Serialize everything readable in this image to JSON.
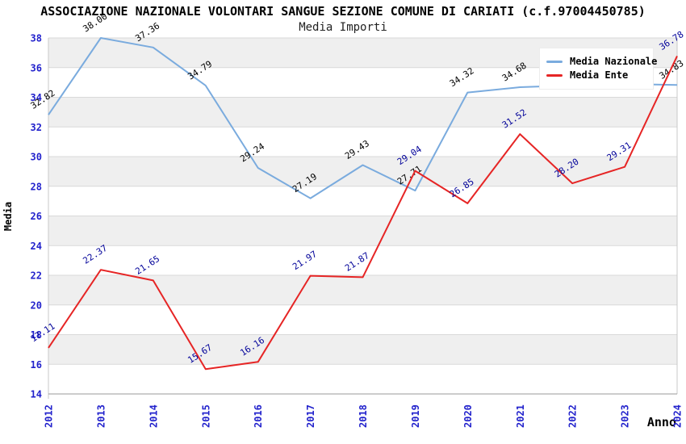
{
  "page": {
    "title": "ASSOCIAZIONE NAZIONALE VOLONTARI SANGUE SEZIONE COMUNE DI CARIATI (c.f.97004450785)",
    "subtitle": "Media Importi"
  },
  "chart_data": {
    "type": "line",
    "title": "ASSOCIAZIONE NAZIONALE VOLONTARI SANGUE SEZIONE COMUNE DI CARIATI (c.f.97004450785)",
    "subtitle": "Media Importi",
    "xlabel": "Anno",
    "ylabel": "Media",
    "x": [
      2012,
      2013,
      2014,
      2015,
      2016,
      2017,
      2018,
      2019,
      2020,
      2021,
      2022,
      2023,
      2024
    ],
    "ylim": [
      14,
      38
    ],
    "ytick_step": 2,
    "grid": true,
    "banded_background": true,
    "legend_position": "top-right",
    "series": [
      {
        "name": "Media Nazionale",
        "color": "#7aabde",
        "label_color": "#000000",
        "values": [
          32.82,
          38.0,
          37.36,
          34.79,
          29.24,
          27.19,
          29.43,
          27.71,
          34.32,
          34.68,
          34.8,
          34.9,
          34.83
        ],
        "labels": [
          "32.82",
          "38.00",
          "37.36",
          "34.79",
          "29.24",
          "27.19",
          "29.43",
          "27.71",
          "34.32",
          "34.68",
          "",
          "",
          "34.83"
        ]
      },
      {
        "name": "Media Ente",
        "color": "#e62525",
        "label_color": "#000099",
        "values": [
          17.11,
          22.37,
          21.65,
          15.67,
          16.16,
          21.97,
          21.87,
          29.04,
          26.85,
          31.52,
          28.2,
          29.31,
          36.78
        ],
        "labels": [
          "17.11",
          "22.37",
          "21.65",
          "15.67",
          "16.16",
          "21.97",
          "21.87",
          "29.04",
          "26.85",
          "31.52",
          "28.20",
          "29.31",
          "36.78"
        ]
      }
    ],
    "colors": {
      "tick_label": "#2222cc",
      "grid_line": "#d9d9d9",
      "band_fill": "#efefef",
      "axis_line": "#9a9a9a",
      "spine_line": "#c8c8c8",
      "background": "#ffffff"
    }
  }
}
